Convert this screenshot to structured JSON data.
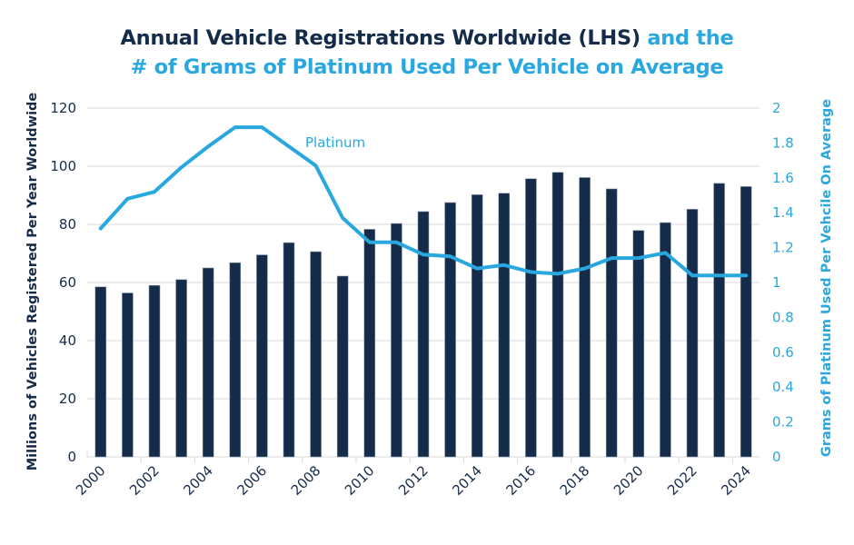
{
  "title": {
    "part1": "Annual Vehicle Registrations Worldwide (LHS)",
    "part2": " and the",
    "line2": "# of Grams of Platinum Used Per Vehicle on Average"
  },
  "colors": {
    "bars": "#142b4a",
    "line": "#29a8e0",
    "title_dark": "#142b4a",
    "title_light": "#29a8e0",
    "grid": "#e0e0e0"
  },
  "chart_data": {
    "type": "bar+line",
    "title": "Annual Vehicle Registrations Worldwide (LHS) and the # of Grams of Platinum Used Per Vehicle on Average",
    "categories": [
      "2000",
      "2001",
      "2002",
      "2003",
      "2004",
      "2005",
      "2006",
      "2007",
      "2008",
      "2009",
      "2010",
      "2011",
      "2012",
      "2013",
      "2014",
      "2015",
      "2016",
      "2017",
      "2018",
      "2019",
      "2020",
      "2021",
      "2022",
      "2023",
      "2024"
    ],
    "x_tick_labels": [
      "2000",
      "2002",
      "2004",
      "2006",
      "2008",
      "2010",
      "2012",
      "2014",
      "2016",
      "2018",
      "2020",
      "2022",
      "2024"
    ],
    "series": [
      {
        "name": "Vehicle Registrations",
        "type": "bar",
        "axis": "left",
        "values": [
          58.5,
          56.4,
          59.0,
          61.0,
          65.0,
          66.8,
          69.5,
          73.7,
          70.6,
          62.2,
          78.3,
          80.3,
          84.4,
          87.5,
          90.2,
          90.7,
          95.7,
          97.9,
          96.1,
          92.2,
          77.9,
          80.6,
          85.2,
          94.1,
          93.0
        ]
      },
      {
        "name": "Platinum",
        "type": "line",
        "axis": "right",
        "values": [
          1.31,
          1.48,
          1.52,
          1.66,
          1.78,
          1.89,
          1.89,
          1.78,
          1.67,
          1.37,
          1.23,
          1.23,
          1.16,
          1.15,
          1.08,
          1.1,
          1.06,
          1.05,
          1.08,
          1.14,
          1.14,
          1.17,
          1.04,
          1.04,
          1.04
        ]
      }
    ],
    "series_label": "Platinum",
    "ylabel": "Millions of Vehicles Registered Per Year Worldwide",
    "ylim": [
      0,
      120
    ],
    "yticks": [
      "0",
      "20",
      "40",
      "60",
      "80",
      "100",
      "120"
    ],
    "y2label": "Grams of Platinum Used Per Vehcile On Average",
    "y2lim": [
      0,
      2
    ],
    "y2ticks": [
      "0",
      "0.2",
      "0.4",
      "0.6",
      "0.8",
      "1",
      "1.2",
      "1.4",
      "1.6",
      "1.8",
      "2"
    ],
    "xlabel": "",
    "grid": true,
    "legend": "inline label near line"
  }
}
